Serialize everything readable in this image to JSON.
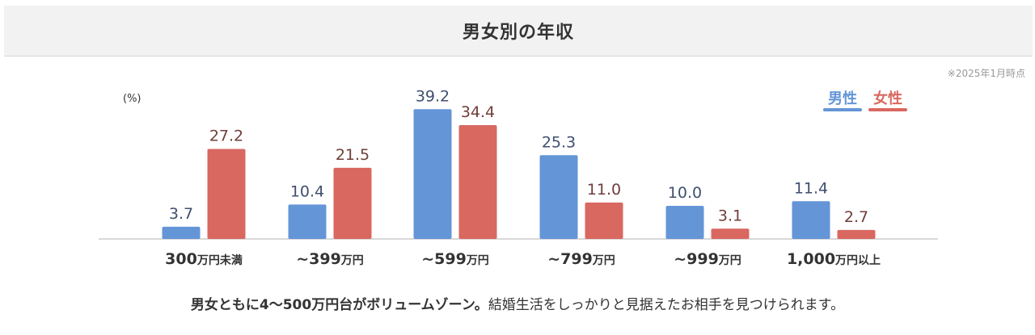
{
  "header": {
    "title": "男女別の年収"
  },
  "note": "※2025年1月時点",
  "colors": {
    "male": "#6495d7",
    "female": "#d96860",
    "axis": "#cccccc",
    "male_label": "#3f4f6f",
    "female_label": "#6f3e3a"
  },
  "chart_data": {
    "type": "bar",
    "title": "男女別の年収",
    "ylabel": "(%)",
    "xlabel": "",
    "ylim": [
      0,
      42
    ],
    "grid": false,
    "legend_position": "top-right",
    "categories": [
      {
        "main": "300",
        "unit": "万円未満"
      },
      {
        "main": "~399",
        "unit": "万円"
      },
      {
        "main": "~599",
        "unit": "万円"
      },
      {
        "main": "~799",
        "unit": "万円"
      },
      {
        "main": "~999",
        "unit": "万円"
      },
      {
        "main": "1,000",
        "unit": "万円以上"
      }
    ],
    "series": [
      {
        "name": "男性",
        "values": [
          3.7,
          10.4,
          39.2,
          25.3,
          10.0,
          11.4
        ],
        "labels": [
          "3.7",
          "10.4",
          "39.2",
          "25.3",
          "10.0",
          "11.4"
        ]
      },
      {
        "name": "女性",
        "values": [
          27.2,
          21.5,
          34.4,
          11.0,
          3.1,
          2.7
        ],
        "labels": [
          "27.2",
          "21.5",
          "34.4",
          "11.0",
          "3.1",
          "2.7"
        ]
      }
    ]
  },
  "caption": {
    "bold": "男女ともに4〜500万円台がボリュームゾーン。",
    "normal": "結婚生活をしっかりと見据えたお相手を見つけられます。"
  }
}
